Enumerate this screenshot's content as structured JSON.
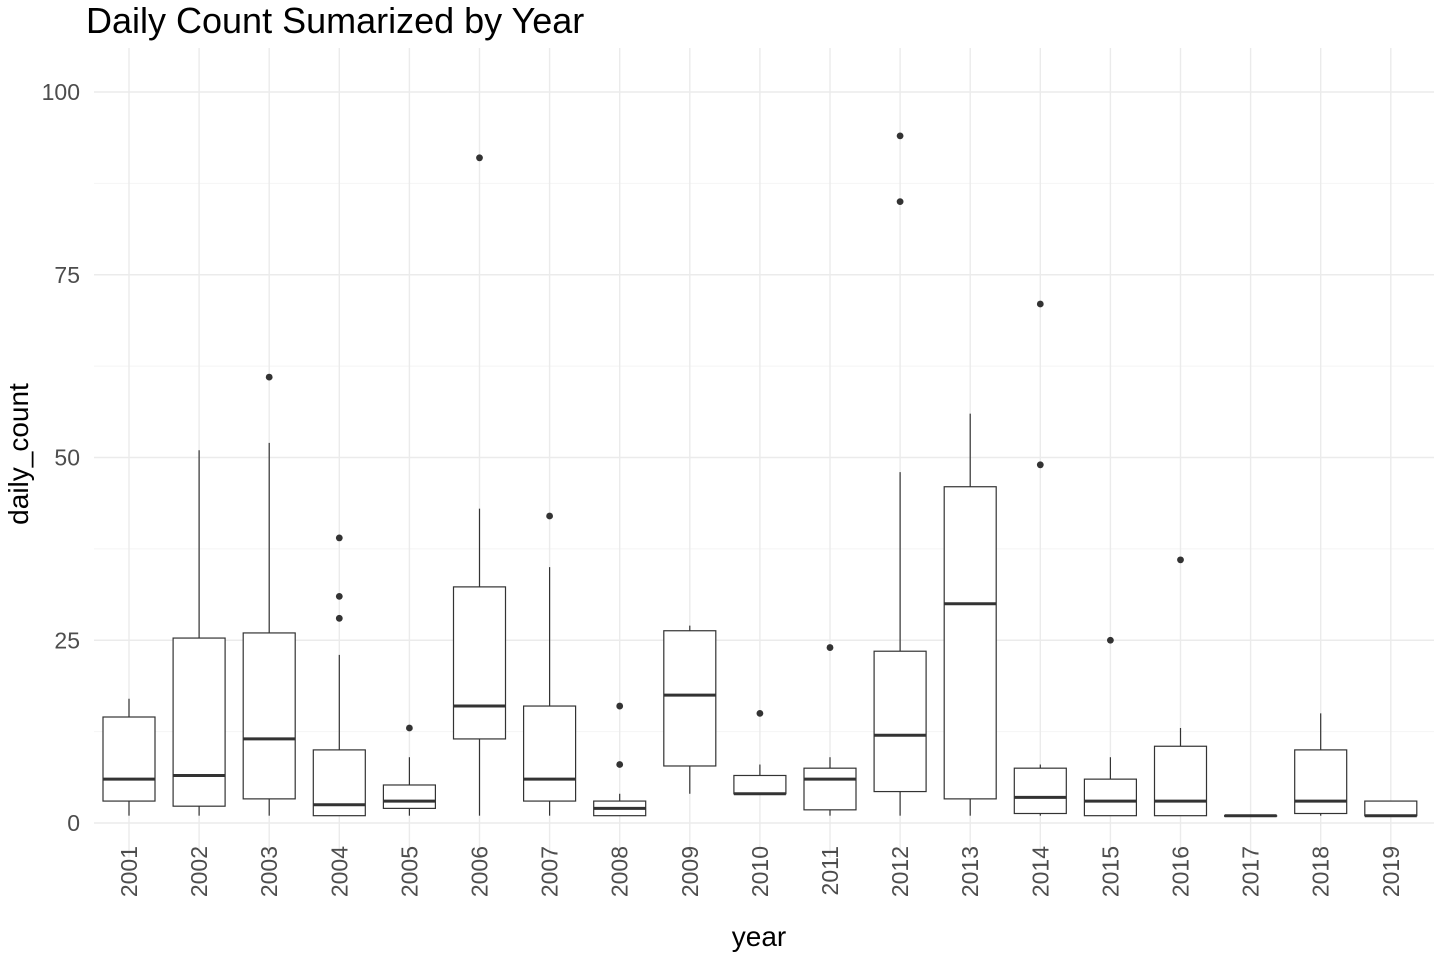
{
  "chart_data": {
    "type": "boxplot",
    "title": "Daily Count Sumarized by Year",
    "xlabel": "year",
    "ylabel": "daily_count",
    "ylim": [
      -5,
      105
    ],
    "yticks": [
      0,
      25,
      50,
      75,
      100
    ],
    "grid": true,
    "legend": "none",
    "categories": [
      "2001",
      "2002",
      "2003",
      "2004",
      "2005",
      "2006",
      "2007",
      "2008",
      "2009",
      "2010",
      "2011",
      "2012",
      "2013",
      "2014",
      "2015",
      "2016",
      "2017",
      "2018",
      "2019"
    ],
    "boxes": [
      {
        "year": "2001",
        "lower_whisker": 1,
        "q1": 3,
        "median": 6,
        "q3": 14.5,
        "upper_whisker": 17,
        "outliers": []
      },
      {
        "year": "2002",
        "lower_whisker": 1,
        "q1": 2.3,
        "median": 6.5,
        "q3": 25.3,
        "upper_whisker": 51,
        "outliers": []
      },
      {
        "year": "2003",
        "lower_whisker": 1,
        "q1": 3.3,
        "median": 11.5,
        "q3": 26,
        "upper_whisker": 52,
        "outliers": [
          61
        ]
      },
      {
        "year": "2004",
        "lower_whisker": 1,
        "q1": 1,
        "median": 2.5,
        "q3": 10,
        "upper_whisker": 23,
        "outliers": [
          28,
          31,
          39
        ]
      },
      {
        "year": "2005",
        "lower_whisker": 1,
        "q1": 2,
        "median": 3,
        "q3": 5.2,
        "upper_whisker": 9,
        "outliers": [
          13
        ]
      },
      {
        "year": "2006",
        "lower_whisker": 1,
        "q1": 11.5,
        "median": 16,
        "q3": 32.3,
        "upper_whisker": 43,
        "outliers": [
          91
        ]
      },
      {
        "year": "2007",
        "lower_whisker": 1,
        "q1": 3,
        "median": 6,
        "q3": 16,
        "upper_whisker": 35,
        "outliers": [
          42
        ]
      },
      {
        "year": "2008",
        "lower_whisker": 1,
        "q1": 1,
        "median": 2,
        "q3": 3,
        "upper_whisker": 4,
        "outliers": [
          8,
          16
        ]
      },
      {
        "year": "2009",
        "lower_whisker": 4,
        "q1": 7.8,
        "median": 17.5,
        "q3": 26.3,
        "upper_whisker": 27,
        "outliers": []
      },
      {
        "year": "2010",
        "lower_whisker": 4,
        "q1": 4,
        "median": 4,
        "q3": 6.5,
        "upper_whisker": 8,
        "outliers": [
          15
        ]
      },
      {
        "year": "2011",
        "lower_whisker": 1,
        "q1": 1.8,
        "median": 6,
        "q3": 7.5,
        "upper_whisker": 9,
        "outliers": [
          24
        ]
      },
      {
        "year": "2012",
        "lower_whisker": 1,
        "q1": 4.3,
        "median": 12,
        "q3": 23.5,
        "upper_whisker": 48,
        "outliers": [
          85,
          94
        ]
      },
      {
        "year": "2013",
        "lower_whisker": 1,
        "q1": 3.3,
        "median": 30,
        "q3": 46,
        "upper_whisker": 56,
        "outliers": []
      },
      {
        "year": "2014",
        "lower_whisker": 1,
        "q1": 1.3,
        "median": 3.5,
        "q3": 7.5,
        "upper_whisker": 8,
        "outliers": [
          49,
          71
        ]
      },
      {
        "year": "2015",
        "lower_whisker": 1,
        "q1": 1,
        "median": 3,
        "q3": 6,
        "upper_whisker": 9,
        "outliers": [
          25
        ]
      },
      {
        "year": "2016",
        "lower_whisker": 1,
        "q1": 1,
        "median": 3,
        "q3": 10.5,
        "upper_whisker": 13,
        "outliers": [
          36
        ]
      },
      {
        "year": "2017",
        "lower_whisker": 1,
        "q1": 1,
        "median": 1,
        "q3": 1,
        "upper_whisker": 1,
        "outliers": []
      },
      {
        "year": "2018",
        "lower_whisker": 1,
        "q1": 1.3,
        "median": 3,
        "q3": 10,
        "upper_whisker": 15,
        "outliers": []
      },
      {
        "year": "2019",
        "lower_whisker": 1,
        "q1": 1,
        "median": 1,
        "q3": 3,
        "upper_whisker": 3,
        "outliers": []
      }
    ],
    "colors": {
      "box_stroke": "#333333",
      "median": "#333333",
      "outlier": "#333333",
      "grid_major": "#ebebeb",
      "grid_minor": "#f4f4f4",
      "text": "#4d4d4d"
    }
  }
}
